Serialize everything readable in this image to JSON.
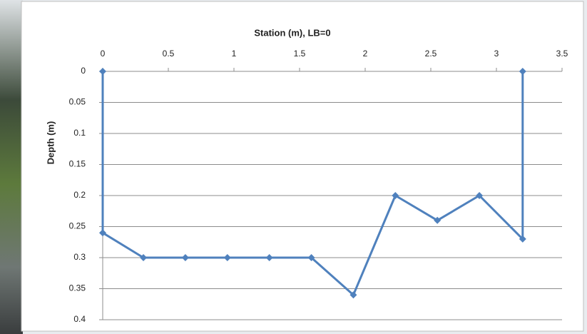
{
  "chart_data": {
    "type": "line",
    "x_title": "Station (m), LB=0",
    "y_title": "Depth (m)",
    "x": [
      0,
      0,
      0.31,
      0.63,
      0.95,
      1.27,
      1.59,
      1.91,
      2.23,
      2.55,
      2.87,
      3.2,
      3.2
    ],
    "series": [
      {
        "color": "#4f81bd",
        "values": [
          0,
          0.26,
          0.3,
          0.3,
          0.3,
          0.3,
          0.3,
          0.36,
          0.2,
          0.24,
          0.2,
          0.27,
          0
        ]
      }
    ],
    "xlim": [
      0,
      3.5
    ],
    "xticks": [
      0,
      0.5,
      1,
      1.5,
      2,
      2.5,
      3,
      3.5
    ],
    "ylim": [
      0,
      0.4
    ],
    "yticks": [
      0,
      0.05,
      0.1,
      0.15,
      0.2,
      0.25,
      0.3,
      0.35,
      0.4
    ],
    "y_reversed": true,
    "x_axis_position": "top",
    "grid": true
  }
}
